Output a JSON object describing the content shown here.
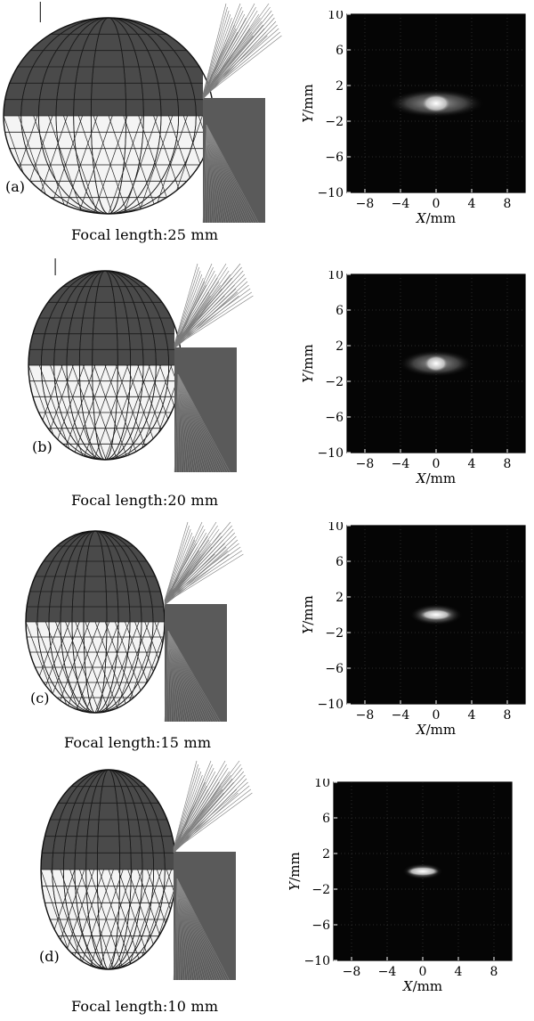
{
  "panels": [
    {
      "id": "a",
      "label": "(a)",
      "axis_marker": "Y",
      "caption": "Focal  length:25 mm",
      "spot": {
        "rx": 5.5,
        "ry": 1.6,
        "core_rx": 1.6,
        "core_ry": 1.0
      }
    },
    {
      "id": "b",
      "label": "(b)",
      "axis_marker": "Y",
      "caption": "Focal  length:20 mm",
      "spot": {
        "rx": 4.2,
        "ry": 1.5,
        "core_rx": 1.3,
        "core_ry": 0.9
      }
    },
    {
      "id": "c",
      "label": "(c)",
      "axis_marker": "",
      "caption": "Focal  length:15 mm",
      "spot": {
        "rx": 3.0,
        "ry": 1.2,
        "core_rx": 1.8,
        "core_ry": 0.6
      }
    },
    {
      "id": "d",
      "label": "(d)",
      "axis_marker": "",
      "caption": "Focal  length:10 mm",
      "spot": {
        "rx": 2.3,
        "ry": 0.9,
        "core_rx": 1.8,
        "core_ry": 0.5
      }
    }
  ],
  "plot": {
    "xlabel": "X/mm",
    "ylabel": "Y/mm",
    "xlim": [
      -10,
      10
    ],
    "ylim": [
      -10,
      10
    ],
    "xticks": [
      -8,
      -4,
      0,
      4,
      8
    ],
    "yticks": [
      10,
      6,
      2,
      -2,
      -6,
      -10
    ]
  },
  "colors": {
    "background": "#ffffff",
    "plot_bg": "#050505",
    "sphere_dark": "#4a4a4a",
    "rays": "#7a7a7a"
  }
}
